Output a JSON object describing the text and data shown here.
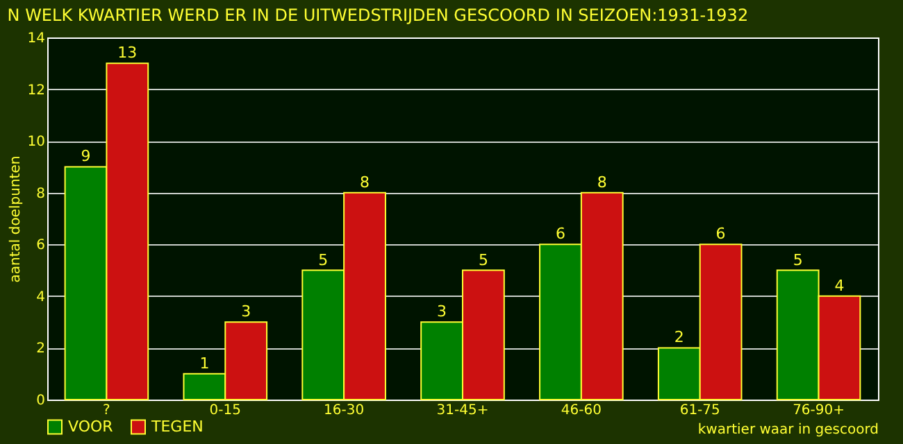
{
  "chart_data": {
    "type": "bar",
    "title": "N WELK KWARTIER WERD ER IN DE UITWEDSTRIJDEN GESCOORD IN SEIZOEN:1931-1932",
    "xlabel": "kwartier waar in gescoord",
    "ylabel": "aantal doelpunten",
    "categories": [
      "?",
      "0-15",
      "16-30",
      "31-45+",
      "46-60",
      "61-75",
      "76-90+"
    ],
    "series": [
      {
        "name": "VOOR",
        "color": "#008000",
        "values": [
          9,
          1,
          5,
          3,
          6,
          2,
          5
        ]
      },
      {
        "name": "TEGEN",
        "color": "#cc1111",
        "values": [
          13,
          3,
          8,
          5,
          8,
          6,
          4
        ]
      }
    ],
    "ylim": [
      0,
      14
    ],
    "yticks": [
      0,
      2,
      4,
      6,
      8,
      10,
      12,
      14
    ],
    "grid": "y",
    "legend": "bottom",
    "data_labels": true
  }
}
